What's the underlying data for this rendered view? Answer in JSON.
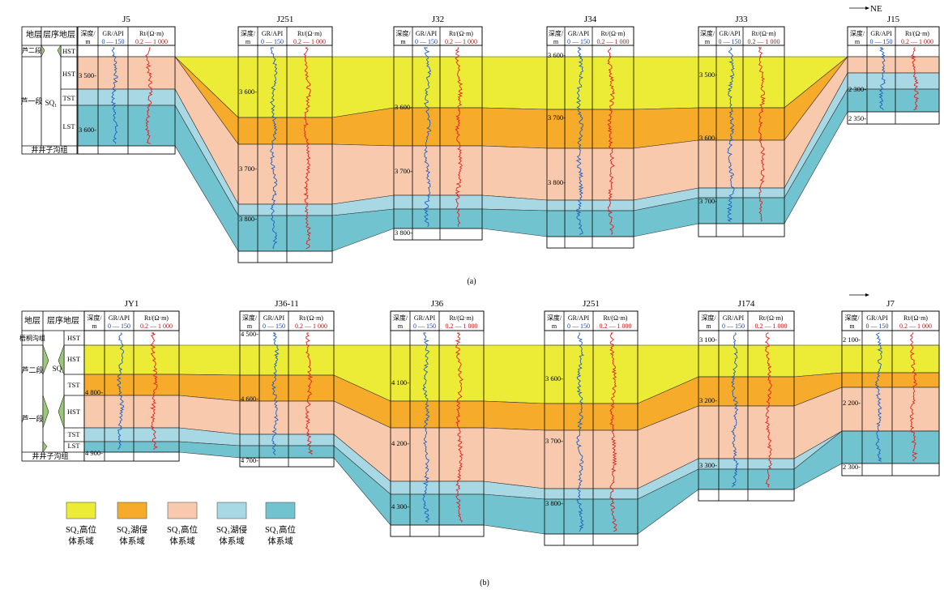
{
  "colors": {
    "sq2_hst": "#ecec36",
    "sq2_tst": "#f6ab2a",
    "sq1_hst": "#f8c9ad",
    "sq1_tst": "#a8d8e3",
    "sq1_lst": "#71c4cf",
    "gr_curve": "#1f5fbf",
    "rt_curve": "#e02020"
  },
  "header_labels": {
    "depth_line1": "深度/",
    "depth_line2": "m",
    "gr_line1": "GR/API",
    "gr_line2": "0 — 150",
    "rt_line1": "Rt/(Ω·m)",
    "rt_line2": "0.2 — 1 000"
  },
  "legend": [
    {
      "color_key": "sq2_hst",
      "line1": "SQ₂高位",
      "line2": "体系域"
    },
    {
      "color_key": "sq2_tst",
      "line1": "SQ₂湖侵",
      "line2": "体系域"
    },
    {
      "color_key": "sq1_hst",
      "line1": "SQ₁高位",
      "line2": "体系域"
    },
    {
      "color_key": "sq1_tst",
      "line1": "SQ₁湖侵",
      "line2": "体系域"
    },
    {
      "color_key": "sq1_lst",
      "line1": "SQ₁高位",
      "line2": "体系域"
    }
  ],
  "panels": [
    {
      "caption": "(a)",
      "direction": "NE",
      "strat_headers": {
        "col1": "地层",
        "col2": "层序地层"
      },
      "strat_formations": [
        "芦二段",
        "芦一段"
      ],
      "strat_base": "井井子沟组",
      "sequence": "SQ₁",
      "systems_tracts": [
        "HST",
        "HST",
        "TST",
        "LST"
      ],
      "wells": [
        {
          "name": "J5",
          "depths": [
            "3 500",
            "3 600"
          ]
        },
        {
          "name": "J251",
          "depths": [
            "3 600",
            "3 700",
            "3 800"
          ]
        },
        {
          "name": "J32",
          "depths": [
            "3 600",
            "3 700",
            "3 800"
          ]
        },
        {
          "name": "J34",
          "depths": [
            "3 600",
            "3 700",
            "3 800"
          ]
        },
        {
          "name": "J33",
          "depths": [
            "3 500",
            "3 600",
            "3 700"
          ]
        },
        {
          "name": "J15",
          "depths": [
            "2 300",
            "2 350"
          ]
        }
      ]
    },
    {
      "caption": "(b)",
      "strat_headers": {
        "col1": "地层",
        "col2": "层序地层"
      },
      "strat_formations": [
        "梧桐沟组",
        "芦二段",
        "芦一段"
      ],
      "strat_base": "井井子沟组",
      "sequence": "SQ₁",
      "systems_tracts": [
        "HST",
        "HST",
        "TST",
        "HST",
        "TST",
        "LST"
      ],
      "wells": [
        {
          "name": "JY1",
          "depths": [
            "4 800",
            "4 900"
          ]
        },
        {
          "name": "J36-11",
          "depths": [
            "4 500",
            "4 600",
            "4 700"
          ]
        },
        {
          "name": "J36",
          "depths": [
            "4 100",
            "4 200",
            "4 300"
          ]
        },
        {
          "name": "J251",
          "depths": [
            "3 600",
            "3 700",
            "3 800"
          ]
        },
        {
          "name": "J174",
          "depths": [
            "3 100",
            "3 200",
            "3 300"
          ]
        },
        {
          "name": "J7",
          "depths": [
            "2 100",
            "2 200",
            "2 300"
          ]
        }
      ]
    }
  ]
}
